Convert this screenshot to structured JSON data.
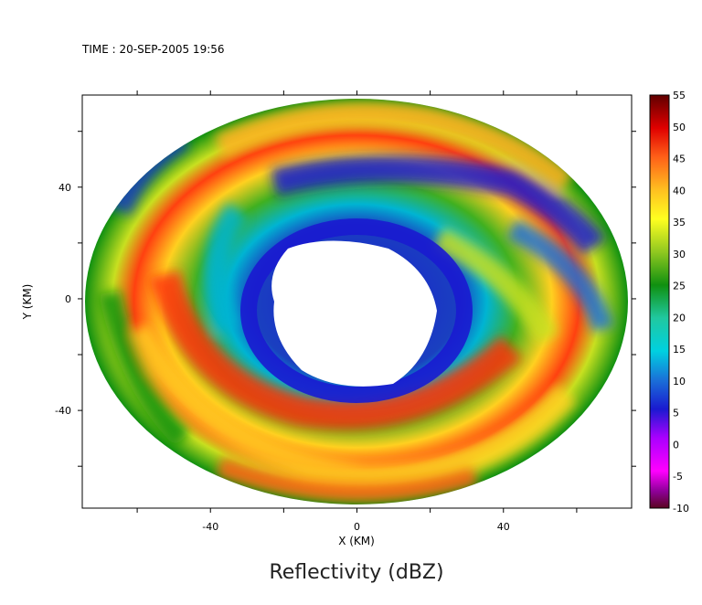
{
  "header": {
    "time_label": "TIME : 20-SEP-2005 19:56"
  },
  "chart_data": {
    "type": "heatmap",
    "title": "Reflectivity (dBZ)",
    "xlabel": "X (KM)",
    "ylabel": "Y (KM)",
    "xlim": [
      -75,
      75
    ],
    "ylim": [
      -75,
      73
    ],
    "x_ticks": [
      -40,
      0,
      40
    ],
    "y_ticks": [
      40,
      0,
      -40
    ],
    "colorbar": {
      "min": -10,
      "max": 55,
      "ticks": [
        55,
        50,
        45,
        40,
        35,
        30,
        25,
        20,
        15,
        10,
        5,
        0,
        -5,
        -10
      ],
      "colors": [
        "#5a0420",
        "#5e0050",
        "#8c0096",
        "#c800c8",
        "#ff00ff",
        "#aa00ff",
        "#6a10ff",
        "#1a1ad0",
        "#1040b0",
        "#1a70d8",
        "#00b4d2",
        "#00e0e0",
        "#20c8a0",
        "#00a040",
        "#109010",
        "#40b020",
        "#90c820",
        "#c8e020",
        "#ffff20",
        "#ffd020",
        "#ffa020",
        "#ff6018",
        "#ff2010",
        "#d80000",
        "#a00000",
        "#600000"
      ]
    },
    "features": {
      "eye_region": "no data (white) around center",
      "eyewall": "low reflectivity (blue/purple) ring around eye",
      "rainbands": "spiral bands of 35-50 dBZ (yellow/orange/red)"
    }
  }
}
